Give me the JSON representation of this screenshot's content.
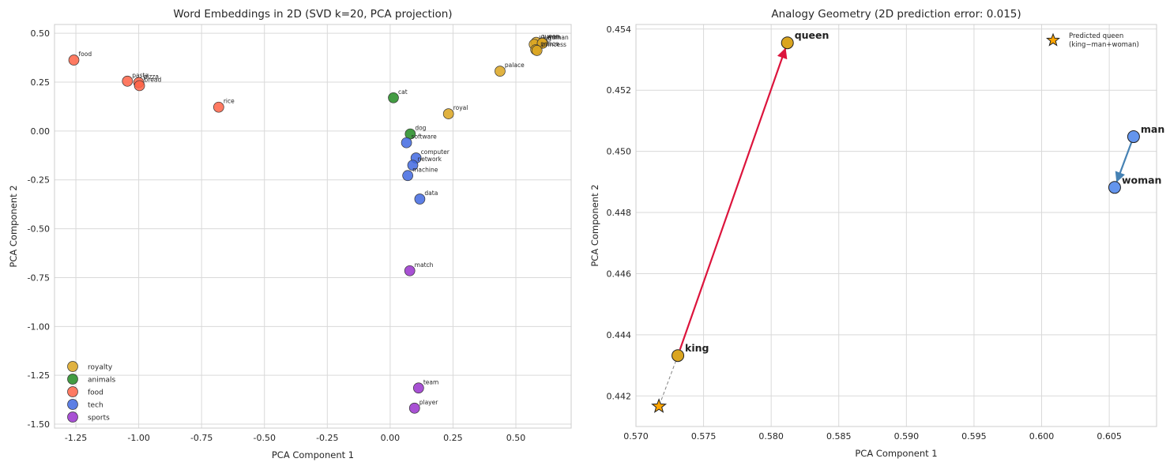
{
  "chart_data": [
    {
      "type": "scatter",
      "title": "Word Embeddings in 2D (SVD k=20, PCA projection)",
      "xlabel": "PCA Component 1",
      "ylabel": "PCA Component 2",
      "xlim": [
        -1.335,
        0.72
      ],
      "ylim": [
        -1.52,
        0.545
      ],
      "xticks": [
        -1.25,
        -1.0,
        -0.75,
        -0.5,
        -0.25,
        0.0,
        0.25,
        0.5
      ],
      "xtick_labels": [
        "-1.25",
        "-1.00",
        "-0.75",
        "-0.50",
        "-0.25",
        "0.00",
        "0.25",
        "0.50"
      ],
      "yticks": [
        -1.5,
        -1.25,
        -1.0,
        -0.75,
        -0.5,
        -0.25,
        0.0,
        0.25,
        0.5
      ],
      "ytick_labels": [
        "-1.50",
        "-1.25",
        "-1.00",
        "-0.75",
        "-0.50",
        "-0.25",
        "0.00",
        "0.25",
        "0.50"
      ],
      "grid": true,
      "legend_position": "lower-left",
      "series": [
        {
          "name": "royalty",
          "color": "#DAA520",
          "points": [
            {
              "label": "queen",
              "x": 0.581,
              "y": 0.4535
            },
            {
              "label": "king",
              "x": 0.573,
              "y": 0.4433
            },
            {
              "label": "man",
              "x": 0.607,
              "y": 0.4505
            },
            {
              "label": "woman",
              "x": 0.605,
              "y": 0.4488
            },
            {
              "label": "prince",
              "x": 0.579,
              "y": 0.416
            },
            {
              "label": "princess",
              "x": 0.584,
              "y": 0.412
            },
            {
              "label": "palace",
              "x": 0.437,
              "y": 0.306
            },
            {
              "label": "royal",
              "x": 0.232,
              "y": 0.088
            }
          ]
        },
        {
          "name": "animals",
          "color": "#228B22",
          "points": [
            {
              "label": "cat",
              "x": 0.013,
              "y": 0.17
            },
            {
              "label": "dog",
              "x": 0.08,
              "y": -0.015
            }
          ]
        },
        {
          "name": "food",
          "color": "#FF6347",
          "points": [
            {
              "label": "food",
              "x": -1.258,
              "y": 0.363
            },
            {
              "label": "pasta",
              "x": -1.045,
              "y": 0.255
            },
            {
              "label": "pizza",
              "x": -1.0,
              "y": 0.248
            },
            {
              "label": "bread",
              "x": -0.997,
              "y": 0.232
            },
            {
              "label": "rice",
              "x": -0.682,
              "y": 0.122
            }
          ]
        },
        {
          "name": "tech",
          "color": "#4169E1",
          "points": [
            {
              "label": "software",
              "x": 0.065,
              "y": -0.06
            },
            {
              "label": "computer",
              "x": 0.103,
              "y": -0.138
            },
            {
              "label": "network",
              "x": 0.09,
              "y": -0.175
            },
            {
              "label": "machine",
              "x": 0.07,
              "y": -0.228
            },
            {
              "label": "data",
              "x": 0.118,
              "y": -0.348
            }
          ]
        },
        {
          "name": "sports",
          "color": "#9932CC",
          "points": [
            {
              "label": "match",
              "x": 0.078,
              "y": -0.715
            },
            {
              "label": "team",
              "x": 0.113,
              "y": -1.315
            },
            {
              "label": "player",
              "x": 0.097,
              "y": -1.418
            }
          ]
        }
      ]
    },
    {
      "type": "scatter",
      "title": "Analogy Geometry (2D prediction error: 0.015)",
      "xlabel": "PCA Component 1",
      "ylabel": "PCA Component 2",
      "xlim": [
        0.57,
        0.6085
      ],
      "ylim": [
        0.441,
        0.45415
      ],
      "xticks": [
        0.57,
        0.575,
        0.58,
        0.585,
        0.59,
        0.595,
        0.6,
        0.605
      ],
      "xtick_labels": [
        "0.570",
        "0.575",
        "0.580",
        "0.585",
        "0.590",
        "0.595",
        "0.600",
        "0.605"
      ],
      "yticks": [
        0.442,
        0.444,
        0.446,
        0.448,
        0.45,
        0.452,
        0.454
      ],
      "ytick_labels": [
        "0.442",
        "0.444",
        "0.446",
        "0.448",
        "0.450",
        "0.452",
        "0.454"
      ],
      "grid": true,
      "legend_position": "top-right",
      "points": [
        {
          "label": "queen",
          "x": 0.5812,
          "y": 0.45355,
          "color": "#DAA520"
        },
        {
          "label": "king",
          "x": 0.5731,
          "y": 0.44332,
          "color": "#DAA520"
        },
        {
          "label": "man",
          "x": 0.6068,
          "y": 0.45048,
          "color": "#6495ED"
        },
        {
          "label": "woman",
          "x": 0.6054,
          "y": 0.44882,
          "color": "#6495ED"
        }
      ],
      "predicted": {
        "x": 0.5717,
        "y": 0.44166,
        "color": "#FFA500"
      },
      "arrows": [
        {
          "from": "king",
          "to": "queen",
          "color": "#DC143C"
        },
        {
          "from": "man",
          "to": "woman",
          "color": "#4682B4"
        }
      ],
      "legend_label": "Predicted queen\n(king−man+woman)"
    }
  ]
}
